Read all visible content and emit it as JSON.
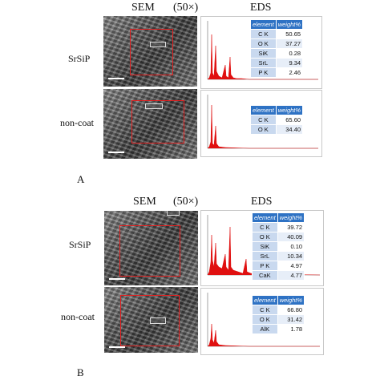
{
  "panel_a": {
    "label": "A",
    "headers": {
      "sem": "SEM",
      "mag": "(50×)",
      "eds": "EDS"
    },
    "rows": [
      {
        "name": "SrSiP",
        "table_header": [
          "element",
          "weight%"
        ],
        "elements": [
          {
            "element": "C K",
            "weight": "50.65"
          },
          {
            "element": "O K",
            "weight": "37.27"
          },
          {
            "element": "SiK",
            "weight": "0.28"
          },
          {
            "element": "SrL",
            "weight": "9.34"
          },
          {
            "element": "P K",
            "weight": "2.46"
          }
        ]
      },
      {
        "name": "non-coat",
        "table_header": [
          "element",
          "weight%"
        ],
        "elements": [
          {
            "element": "C K",
            "weight": "65.60"
          },
          {
            "element": "O K",
            "weight": "34.40"
          }
        ]
      }
    ]
  },
  "panel_b": {
    "label": "B",
    "headers": {
      "sem": "SEM",
      "mag": "(50×)",
      "eds": "EDS"
    },
    "rows": [
      {
        "name": "SrSiP",
        "table_header": [
          "element",
          "weight%"
        ],
        "elements": [
          {
            "element": "C K",
            "weight": "39.72"
          },
          {
            "element": "O K",
            "weight": "40.09"
          },
          {
            "element": "SiK",
            "weight": "0.10"
          },
          {
            "element": "SrL",
            "weight": "10.34"
          },
          {
            "element": "P K",
            "weight": "4.97"
          },
          {
            "element": "CaK",
            "weight": "4.77"
          }
        ]
      },
      {
        "name": "non-coat",
        "table_header": [
          "element",
          "weight%"
        ],
        "elements": [
          {
            "element": "C K",
            "weight": "66.80"
          },
          {
            "element": "O K",
            "weight": "31.42"
          },
          {
            "element": "AlK",
            "weight": "1.78"
          }
        ]
      }
    ]
  },
  "colors": {
    "spectrum": "#e01010",
    "roi": "#e02020",
    "table_header": "#2e72c4",
    "table_cell": "#c9d9ef"
  }
}
